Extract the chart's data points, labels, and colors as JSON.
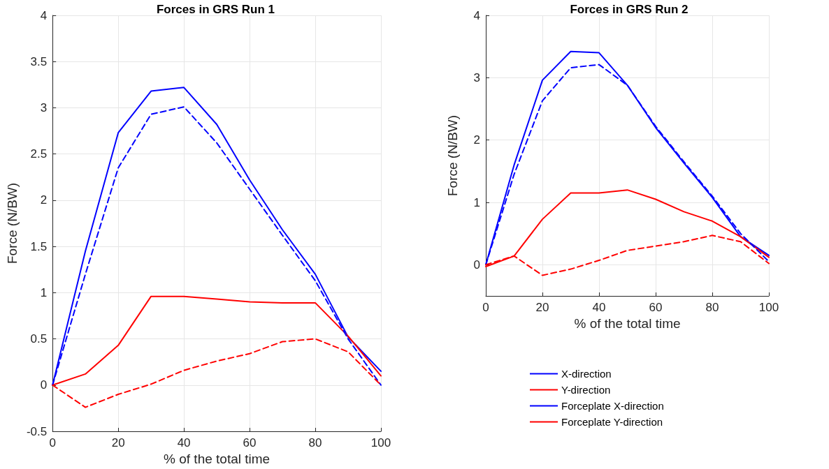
{
  "chart_data": [
    {
      "type": "line",
      "title": "Forces in GRS Run 1",
      "xlabel": "% of the total time",
      "ylabel": "Force (N/BW)",
      "x": [
        0,
        10,
        20,
        30,
        40,
        50,
        60,
        70,
        80,
        90,
        100
      ],
      "xlim": [
        0,
        100
      ],
      "xticks": [
        0,
        20,
        40,
        60,
        80,
        100
      ],
      "ylim": [
        -0.5,
        4
      ],
      "yticks": [
        -0.5,
        0,
        0.5,
        1,
        1.5,
        2,
        2.5,
        3,
        3.5,
        4
      ],
      "grid": true,
      "legend": false,
      "marker": "none",
      "series": [
        {
          "color": "#0000ff",
          "line_style": "solid",
          "values": [
            0,
            1.45,
            2.73,
            3.18,
            3.22,
            2.82,
            2.22,
            1.68,
            1.2,
            0.52,
            0.15
          ]
        },
        {
          "color": "#ff0000",
          "line_style": "solid",
          "values": [
            0,
            0.12,
            0.43,
            0.96,
            0.96,
            0.93,
            0.9,
            0.89,
            0.89,
            0.53,
            0.1
          ]
        },
        {
          "color": "#0000ff",
          "line_style": "dashed",
          "values": [
            0,
            1.2,
            2.35,
            2.93,
            3.01,
            2.62,
            2.12,
            1.62,
            1.13,
            0.5,
            0
          ]
        },
        {
          "color": "#ff0000",
          "line_style": "dashed",
          "values": [
            0,
            -0.24,
            -0.1,
            0.01,
            0.16,
            0.26,
            0.34,
            0.47,
            0.5,
            0.36,
            0
          ]
        }
      ]
    },
    {
      "type": "line",
      "title": "Forces in GRS Run 2",
      "xlabel": "% of the total time",
      "ylabel": "Force (N/BW)",
      "x": [
        0,
        10,
        20,
        30,
        40,
        50,
        60,
        70,
        80,
        90,
        100
      ],
      "xlim": [
        0,
        100
      ],
      "xticks": [
        0,
        20,
        40,
        60,
        80,
        100
      ],
      "ylim": [
        -0.5,
        4
      ],
      "yticks": [
        0,
        1,
        2,
        3,
        4
      ],
      "grid": true,
      "legend": "bottom",
      "marker": "none",
      "series": [
        {
          "name": "X-direction",
          "color": "#0000ff",
          "line_style": "solid",
          "values": [
            0,
            1.6,
            2.96,
            3.42,
            3.4,
            2.88,
            2.2,
            1.63,
            1.08,
            0.45,
            0.15
          ]
        },
        {
          "name": "Y-direction",
          "color": "#ff0000",
          "line_style": "solid",
          "values": [
            -0.03,
            0.14,
            0.73,
            1.15,
            1.15,
            1.2,
            1.05,
            0.85,
            0.7,
            0.45,
            0.12
          ]
        },
        {
          "name": "Forceplate X-direction",
          "color": "#0000ff",
          "line_style": "dashed",
          "values": [
            0,
            1.45,
            2.63,
            3.16,
            3.21,
            2.88,
            2.22,
            1.65,
            1.1,
            0.5,
            0.05
          ]
        },
        {
          "name": "Forceplate Y-direction",
          "color": "#ff0000",
          "line_style": "dashed",
          "values": [
            0,
            0.14,
            -0.17,
            -0.07,
            0.07,
            0.23,
            0.3,
            0.37,
            0.47,
            0.37,
            0.02
          ]
        }
      ]
    }
  ]
}
